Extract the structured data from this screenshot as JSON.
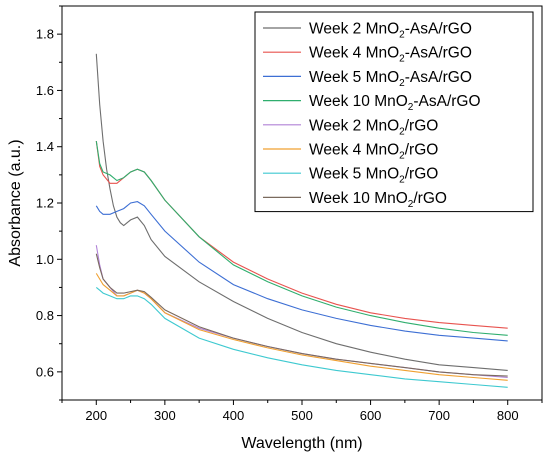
{
  "chart_data": {
    "type": "line",
    "xlabel": "Wavelength (nm)",
    "ylabel": "Absorbance (a.u.)",
    "xlim": [
      150,
      850
    ],
    "ylim": [
      0.5,
      1.9
    ],
    "xticks": [
      200,
      300,
      400,
      500,
      600,
      700,
      800
    ],
    "yticks": [
      0.6,
      0.8,
      1.0,
      1.2,
      1.4,
      1.6,
      1.8
    ],
    "xtick_labels": [
      "200",
      "300",
      "400",
      "500",
      "600",
      "700",
      "800"
    ],
    "ytick_labels": [
      "0.6",
      "0.8",
      "1.0",
      "1.2",
      "1.4",
      "1.6",
      "1.8"
    ],
    "grid": false,
    "legend_position": "top-right",
    "series": [
      {
        "name": "Week 2 MnO2-AsA/rGO",
        "label_parts": [
          "Week 2 MnO",
          "2",
          "-AsA/rGO"
        ],
        "color": "#6e6e6e",
        "x": [
          200,
          205,
          210,
          215,
          220,
          225,
          230,
          235,
          240,
          250,
          260,
          270,
          280,
          300,
          350,
          400,
          450,
          500,
          550,
          600,
          650,
          700,
          750,
          800
        ],
        "y": [
          1.73,
          1.55,
          1.42,
          1.32,
          1.25,
          1.19,
          1.15,
          1.13,
          1.12,
          1.14,
          1.15,
          1.12,
          1.07,
          1.01,
          0.92,
          0.85,
          0.79,
          0.74,
          0.7,
          0.67,
          0.645,
          0.625,
          0.615,
          0.605
        ]
      },
      {
        "name": "Week 4 MnO2-AsA/rGO",
        "label_parts": [
          "Week 4 MnO",
          "2",
          "-AsA/rGO"
        ],
        "color": "#e8534f",
        "x": [
          200,
          205,
          210,
          220,
          230,
          240,
          250,
          260,
          270,
          280,
          300,
          350,
          400,
          450,
          500,
          550,
          600,
          650,
          700,
          750,
          800
        ],
        "y": [
          1.42,
          1.33,
          1.3,
          1.27,
          1.27,
          1.29,
          1.31,
          1.32,
          1.31,
          1.28,
          1.21,
          1.08,
          0.99,
          0.93,
          0.88,
          0.84,
          0.81,
          0.79,
          0.775,
          0.765,
          0.755
        ]
      },
      {
        "name": "Week 5 MnO2-AsA/rGO",
        "label_parts": [
          "Week 5 MnO",
          "2",
          "-AsA/rGO"
        ],
        "color": "#3d6fd4",
        "x": [
          200,
          205,
          210,
          220,
          230,
          240,
          250,
          260,
          270,
          280,
          300,
          350,
          400,
          450,
          500,
          550,
          600,
          650,
          700,
          750,
          800
        ],
        "y": [
          1.19,
          1.17,
          1.16,
          1.16,
          1.17,
          1.18,
          1.2,
          1.205,
          1.19,
          1.16,
          1.1,
          0.99,
          0.91,
          0.86,
          0.82,
          0.79,
          0.765,
          0.745,
          0.73,
          0.72,
          0.71
        ]
      },
      {
        "name": "Week 10 MnO2-AsA/rGO",
        "label_parts": [
          "Week 10 MnO",
          "2",
          "-AsA/rGO"
        ],
        "color": "#2fae6e",
        "x": [
          200,
          205,
          210,
          220,
          230,
          240,
          250,
          260,
          270,
          280,
          300,
          350,
          400,
          450,
          500,
          550,
          600,
          650,
          700,
          750,
          800
        ],
        "y": [
          1.42,
          1.34,
          1.31,
          1.3,
          1.28,
          1.29,
          1.31,
          1.32,
          1.31,
          1.28,
          1.21,
          1.08,
          0.98,
          0.92,
          0.87,
          0.83,
          0.8,
          0.775,
          0.755,
          0.74,
          0.73
        ]
      },
      {
        "name": "Week 2 MnO2/rGO",
        "label_parts": [
          "Week 2 MnO",
          "2",
          "/rGO"
        ],
        "color": "#b082d6",
        "x": [
          200,
          205,
          210,
          220,
          230,
          240,
          250,
          260,
          270,
          280,
          300,
          350,
          400,
          450,
          500,
          550,
          600,
          650,
          700,
          750,
          800
        ],
        "y": [
          1.05,
          0.98,
          0.93,
          0.9,
          0.87,
          0.87,
          0.88,
          0.89,
          0.88,
          0.86,
          0.81,
          0.755,
          0.72,
          0.69,
          0.665,
          0.645,
          0.63,
          0.615,
          0.6,
          0.59,
          0.58
        ]
      },
      {
        "name": "Week 4 MnO2/rGO",
        "label_parts": [
          "Week 4 MnO",
          "2",
          "/rGO"
        ],
        "color": "#f0a030",
        "x": [
          200,
          205,
          210,
          220,
          230,
          240,
          250,
          260,
          270,
          280,
          300,
          350,
          400,
          450,
          500,
          550,
          600,
          650,
          700,
          750,
          800
        ],
        "y": [
          0.95,
          0.93,
          0.91,
          0.89,
          0.87,
          0.87,
          0.88,
          0.89,
          0.88,
          0.86,
          0.81,
          0.75,
          0.715,
          0.685,
          0.66,
          0.64,
          0.62,
          0.605,
          0.59,
          0.58,
          0.57
        ]
      },
      {
        "name": "Week 5 MnO2/rGO",
        "label_parts": [
          "Week 5 MnO",
          "2",
          "/rGO"
        ],
        "color": "#3ec9d0",
        "x": [
          200,
          205,
          210,
          220,
          230,
          240,
          250,
          260,
          270,
          280,
          300,
          350,
          400,
          450,
          500,
          550,
          600,
          650,
          700,
          750,
          800
        ],
        "y": [
          0.9,
          0.89,
          0.88,
          0.87,
          0.86,
          0.86,
          0.87,
          0.87,
          0.86,
          0.84,
          0.79,
          0.72,
          0.68,
          0.65,
          0.625,
          0.605,
          0.59,
          0.575,
          0.565,
          0.555,
          0.545
        ]
      },
      {
        "name": "Week 10 MnO2/rGO",
        "label_parts": [
          "Week 10 MnO",
          "2",
          "/rGO"
        ],
        "color": "#7a6a5e",
        "x": [
          200,
          205,
          210,
          220,
          230,
          240,
          250,
          260,
          270,
          280,
          300,
          350,
          400,
          450,
          500,
          550,
          600,
          650,
          700,
          750,
          800
        ],
        "y": [
          1.02,
          0.97,
          0.93,
          0.9,
          0.88,
          0.88,
          0.885,
          0.89,
          0.885,
          0.865,
          0.82,
          0.76,
          0.72,
          0.69,
          0.665,
          0.645,
          0.63,
          0.615,
          0.6,
          0.59,
          0.585
        ]
      }
    ]
  }
}
